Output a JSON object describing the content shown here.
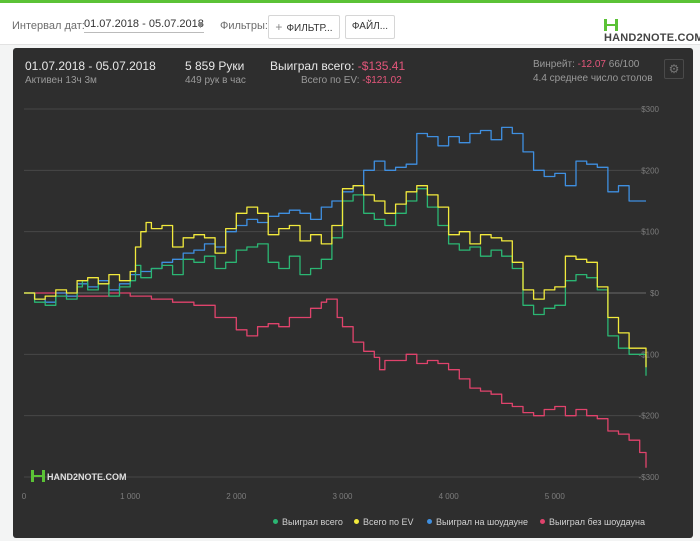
{
  "toolbar": {
    "date_interval_label": "Интервал дат:",
    "date_range": "01.07.2018 - 05.07.2018",
    "filters_label": "Фильтры:",
    "filter_button": "ФИЛЬТР...",
    "file_button": "ФАЙЛ...",
    "logo_text": "HAND2NOTE.COM"
  },
  "header": {
    "period": "01.07.2018 - 05.07.2018",
    "active": "Активен 13ч 3м",
    "hands": "5 859 Руки",
    "hands_per_hour": "449 рук в час",
    "won_label": "Выиграл всего:",
    "won_value": "-$135.41",
    "ev_label": "Всего по EV:",
    "ev_value": "-$121.02",
    "winrate_label": "Винрейт:",
    "winrate_value": "-12.07",
    "winrate_unit": "66/100",
    "avg_tables": "4.4 среднее число столов"
  },
  "watermark": "HAND2NOTE.COM",
  "colors": {
    "won_total": "#2bb673",
    "ev_total": "#f2ea3c",
    "showdown": "#3f8fe0",
    "non_showdown": "#e0436c"
  },
  "chart_data": {
    "type": "line",
    "title": "",
    "xlabel": "",
    "ylabel": "",
    "xlim": [
      0,
      5859
    ],
    "ylim": [
      -300,
      300
    ],
    "x_ticks": [
      0,
      1000,
      2000,
      3000,
      4000,
      5000
    ],
    "x_tick_labels": [
      "0",
      "1 000",
      "2 000",
      "3 000",
      "4 000",
      "5 000"
    ],
    "y_ticks": [
      300,
      200,
      100,
      0,
      -100,
      -200,
      -300
    ],
    "y_tick_labels": [
      "$300",
      "$200",
      "$100",
      "$0",
      "-$100",
      "-$200",
      "-$300"
    ],
    "grid": true,
    "legend_position": "bottom-right",
    "series": [
      {
        "name": "Выиграл всего",
        "color": "#2bb673",
        "points": [
          [
            0,
            0
          ],
          [
            100,
            -15
          ],
          [
            200,
            -20
          ],
          [
            300,
            -5
          ],
          [
            400,
            -10
          ],
          [
            500,
            10
          ],
          [
            550,
            20
          ],
          [
            600,
            5
          ],
          [
            700,
            15
          ],
          [
            800,
            -5
          ],
          [
            900,
            10
          ],
          [
            1000,
            20
          ],
          [
            1050,
            45
          ],
          [
            1100,
            25
          ],
          [
            1200,
            40
          ],
          [
            1300,
            45
          ],
          [
            1400,
            30
          ],
          [
            1500,
            55
          ],
          [
            1600,
            50
          ],
          [
            1700,
            60
          ],
          [
            1800,
            40
          ],
          [
            1900,
            50
          ],
          [
            2000,
            70
          ],
          [
            2100,
            75
          ],
          [
            2200,
            80
          ],
          [
            2300,
            50
          ],
          [
            2400,
            40
          ],
          [
            2500,
            60
          ],
          [
            2600,
            30
          ],
          [
            2700,
            40
          ],
          [
            2800,
            55
          ],
          [
            2900,
            90
          ],
          [
            3000,
            150
          ],
          [
            3100,
            160
          ],
          [
            3200,
            130
          ],
          [
            3300,
            120
          ],
          [
            3400,
            110
          ],
          [
            3500,
            130
          ],
          [
            3600,
            150
          ],
          [
            3700,
            170
          ],
          [
            3800,
            140
          ],
          [
            3900,
            110
          ],
          [
            4000,
            80
          ],
          [
            4100,
            70
          ],
          [
            4200,
            75
          ],
          [
            4300,
            60
          ],
          [
            4400,
            70
          ],
          [
            4500,
            60
          ],
          [
            4600,
            40
          ],
          [
            4700,
            -20
          ],
          [
            4800,
            -35
          ],
          [
            4900,
            -25
          ],
          [
            5000,
            -20
          ],
          [
            5100,
            20
          ],
          [
            5200,
            30
          ],
          [
            5300,
            25
          ],
          [
            5400,
            5
          ],
          [
            5500,
            -70
          ],
          [
            5600,
            -90
          ],
          [
            5700,
            -100
          ],
          [
            5859,
            -135
          ]
        ]
      },
      {
        "name": "Всего по EV",
        "color": "#f2ea3c",
        "points": [
          [
            0,
            0
          ],
          [
            100,
            -10
          ],
          [
            200,
            -5
          ],
          [
            300,
            5
          ],
          [
            400,
            0
          ],
          [
            500,
            20
          ],
          [
            600,
            25
          ],
          [
            700,
            15
          ],
          [
            800,
            30
          ],
          [
            900,
            20
          ],
          [
            1000,
            35
          ],
          [
            1050,
            75
          ],
          [
            1100,
            100
          ],
          [
            1150,
            115
          ],
          [
            1200,
            105
          ],
          [
            1300,
            110
          ],
          [
            1400,
            75
          ],
          [
            1500,
            90
          ],
          [
            1600,
            95
          ],
          [
            1700,
            90
          ],
          [
            1800,
            65
          ],
          [
            1900,
            105
          ],
          [
            2000,
            130
          ],
          [
            2100,
            140
          ],
          [
            2200,
            130
          ],
          [
            2300,
            95
          ],
          [
            2400,
            105
          ],
          [
            2500,
            110
          ],
          [
            2600,
            85
          ],
          [
            2700,
            95
          ],
          [
            2800,
            80
          ],
          [
            2900,
            110
          ],
          [
            3000,
            170
          ],
          [
            3100,
            175
          ],
          [
            3200,
            160
          ],
          [
            3300,
            150
          ],
          [
            3400,
            130
          ],
          [
            3500,
            145
          ],
          [
            3600,
            165
          ],
          [
            3700,
            175
          ],
          [
            3800,
            160
          ],
          [
            3900,
            140
          ],
          [
            4000,
            95
          ],
          [
            4100,
            100
          ],
          [
            4200,
            80
          ],
          [
            4300,
            95
          ],
          [
            4400,
            90
          ],
          [
            4500,
            85
          ],
          [
            4600,
            50
          ],
          [
            4700,
            5
          ],
          [
            4800,
            -10
          ],
          [
            4900,
            5
          ],
          [
            5000,
            10
          ],
          [
            5100,
            60
          ],
          [
            5200,
            55
          ],
          [
            5300,
            50
          ],
          [
            5400,
            10
          ],
          [
            5500,
            -40
          ],
          [
            5600,
            -65
          ],
          [
            5700,
            -90
          ],
          [
            5859,
            -121
          ]
        ]
      },
      {
        "name": "Выиграл на шоудауне",
        "color": "#3f8fe0",
        "points": [
          [
            0,
            0
          ],
          [
            100,
            -10
          ],
          [
            200,
            -15
          ],
          [
            300,
            0
          ],
          [
            400,
            -5
          ],
          [
            500,
            15
          ],
          [
            600,
            10
          ],
          [
            700,
            20
          ],
          [
            800,
            5
          ],
          [
            900,
            15
          ],
          [
            1000,
            30
          ],
          [
            1100,
            35
          ],
          [
            1200,
            40
          ],
          [
            1300,
            50
          ],
          [
            1400,
            55
          ],
          [
            1500,
            65
          ],
          [
            1600,
            70
          ],
          [
            1700,
            80
          ],
          [
            1800,
            75
          ],
          [
            1900,
            100
          ],
          [
            2000,
            110
          ],
          [
            2100,
            120
          ],
          [
            2200,
            115
          ],
          [
            2300,
            125
          ],
          [
            2400,
            130
          ],
          [
            2500,
            135
          ],
          [
            2600,
            130
          ],
          [
            2700,
            120
          ],
          [
            2800,
            140
          ],
          [
            2900,
            150
          ],
          [
            3000,
            165
          ],
          [
            3100,
            175
          ],
          [
            3200,
            200
          ],
          [
            3300,
            215
          ],
          [
            3400,
            200
          ],
          [
            3500,
            205
          ],
          [
            3600,
            210
          ],
          [
            3700,
            260
          ],
          [
            3800,
            255
          ],
          [
            3900,
            240
          ],
          [
            4000,
            255
          ],
          [
            4100,
            245
          ],
          [
            4200,
            260
          ],
          [
            4300,
            265
          ],
          [
            4400,
            250
          ],
          [
            4500,
            270
          ],
          [
            4600,
            260
          ],
          [
            4700,
            230
          ],
          [
            4800,
            200
          ],
          [
            4900,
            190
          ],
          [
            5000,
            195
          ],
          [
            5100,
            175
          ],
          [
            5200,
            215
          ],
          [
            5300,
            210
          ],
          [
            5400,
            205
          ],
          [
            5500,
            165
          ],
          [
            5600,
            175
          ],
          [
            5700,
            150
          ],
          [
            5859,
            150
          ]
        ]
      },
      {
        "name": "Выиграл без шоудауна",
        "color": "#e0436c",
        "points": [
          [
            0,
            0
          ],
          [
            200,
            0
          ],
          [
            400,
            -5
          ],
          [
            600,
            -5
          ],
          [
            800,
            0
          ],
          [
            1000,
            -5
          ],
          [
            1200,
            -10
          ],
          [
            1400,
            -15
          ],
          [
            1600,
            -20
          ],
          [
            1800,
            -40
          ],
          [
            2000,
            -60
          ],
          [
            2100,
            -70
          ],
          [
            2200,
            -55
          ],
          [
            2300,
            -50
          ],
          [
            2400,
            -55
          ],
          [
            2500,
            -40
          ],
          [
            2600,
            -40
          ],
          [
            2700,
            -25
          ],
          [
            2800,
            -15
          ],
          [
            2850,
            -10
          ],
          [
            2950,
            -40
          ],
          [
            3000,
            -55
          ],
          [
            3100,
            -80
          ],
          [
            3200,
            -95
          ],
          [
            3300,
            -105
          ],
          [
            3350,
            -125
          ],
          [
            3400,
            -110
          ],
          [
            3500,
            -110
          ],
          [
            3600,
            -100
          ],
          [
            3700,
            -115
          ],
          [
            3800,
            -110
          ],
          [
            3900,
            -115
          ],
          [
            4000,
            -125
          ],
          [
            4100,
            -140
          ],
          [
            4200,
            -155
          ],
          [
            4300,
            -160
          ],
          [
            4400,
            -165
          ],
          [
            4500,
            -180
          ],
          [
            4600,
            -185
          ],
          [
            4700,
            -195
          ],
          [
            4800,
            -200
          ],
          [
            4900,
            -190
          ],
          [
            5000,
            -185
          ],
          [
            5100,
            -200
          ],
          [
            5200,
            -190
          ],
          [
            5300,
            -200
          ],
          [
            5400,
            -205
          ],
          [
            5500,
            -225
          ],
          [
            5600,
            -230
          ],
          [
            5700,
            -240
          ],
          [
            5800,
            -260
          ],
          [
            5859,
            -285
          ]
        ]
      }
    ]
  }
}
